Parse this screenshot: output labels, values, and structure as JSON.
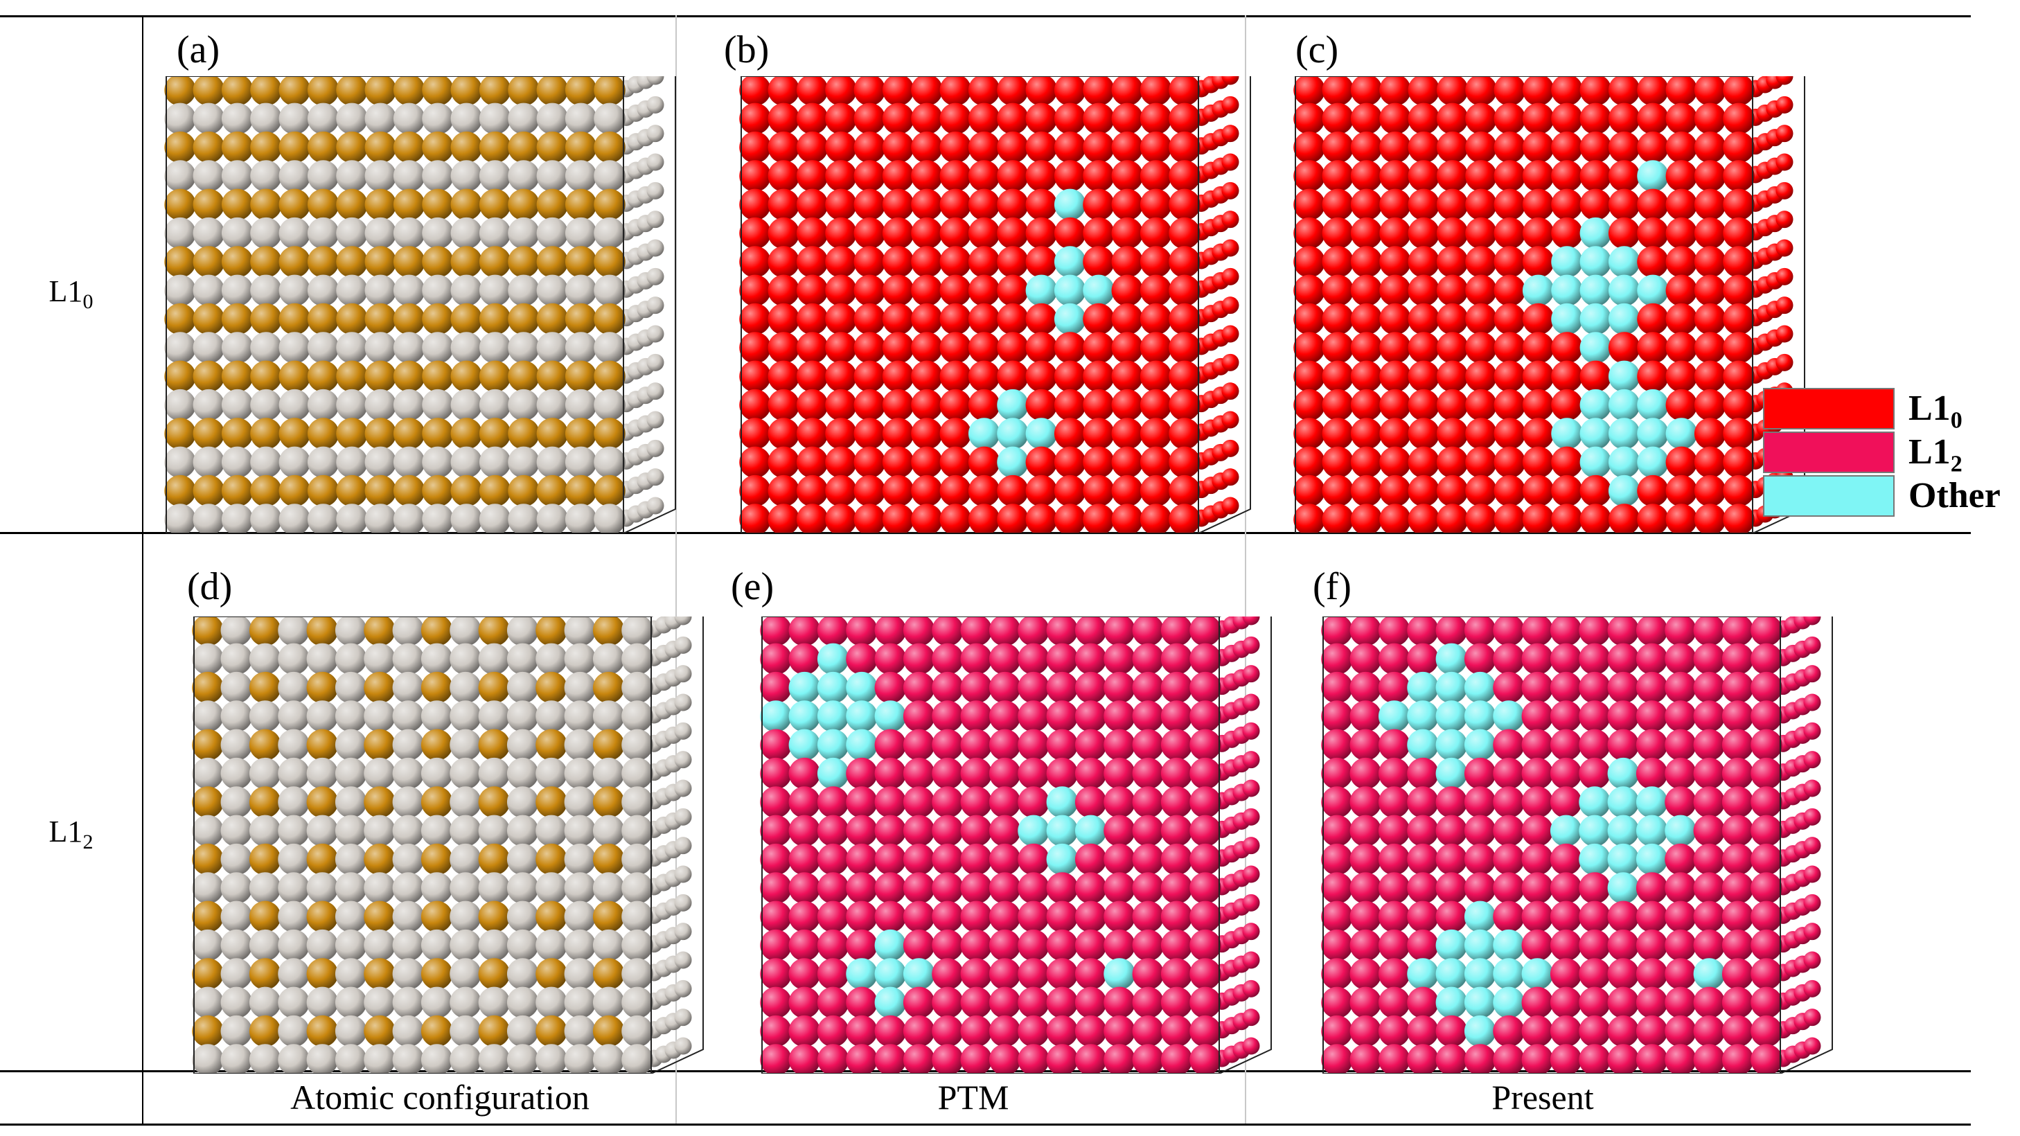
{
  "rows": [
    {
      "label_base": "L1",
      "label_sub": "0"
    },
    {
      "label_base": "L1",
      "label_sub": "2"
    }
  ],
  "columns": [
    {
      "label": "Atomic configuration"
    },
    {
      "label": "PTM"
    },
    {
      "label": "Present"
    }
  ],
  "panels": [
    {
      "label": "(a)",
      "kind": "atomic",
      "style": "L10"
    },
    {
      "label": "(b)",
      "kind": "structure",
      "structure": "L10",
      "method": "PTM"
    },
    {
      "label": "(c)",
      "kind": "structure",
      "structure": "L10",
      "method": "Present"
    },
    {
      "label": "(d)",
      "kind": "atomic",
      "style": "L12"
    },
    {
      "label": "(e)",
      "kind": "structure",
      "structure": "L12",
      "method": "PTM"
    },
    {
      "label": "(f)",
      "kind": "structure",
      "structure": "L12",
      "method": "Present"
    }
  ],
  "legend": [
    {
      "base": "L1",
      "sub": "0",
      "color": "#ff0000"
    },
    {
      "base": "L1",
      "sub": "2",
      "color": "#f0105a"
    },
    {
      "base": "Other",
      "sub": "",
      "color": "#7ff5f5"
    }
  ],
  "colors": {
    "L10": "#ff0000",
    "L12": "#f0105a",
    "Other": "#7ff5f5",
    "Au": "#c8860e",
    "Cu": "#cfcac4"
  }
}
